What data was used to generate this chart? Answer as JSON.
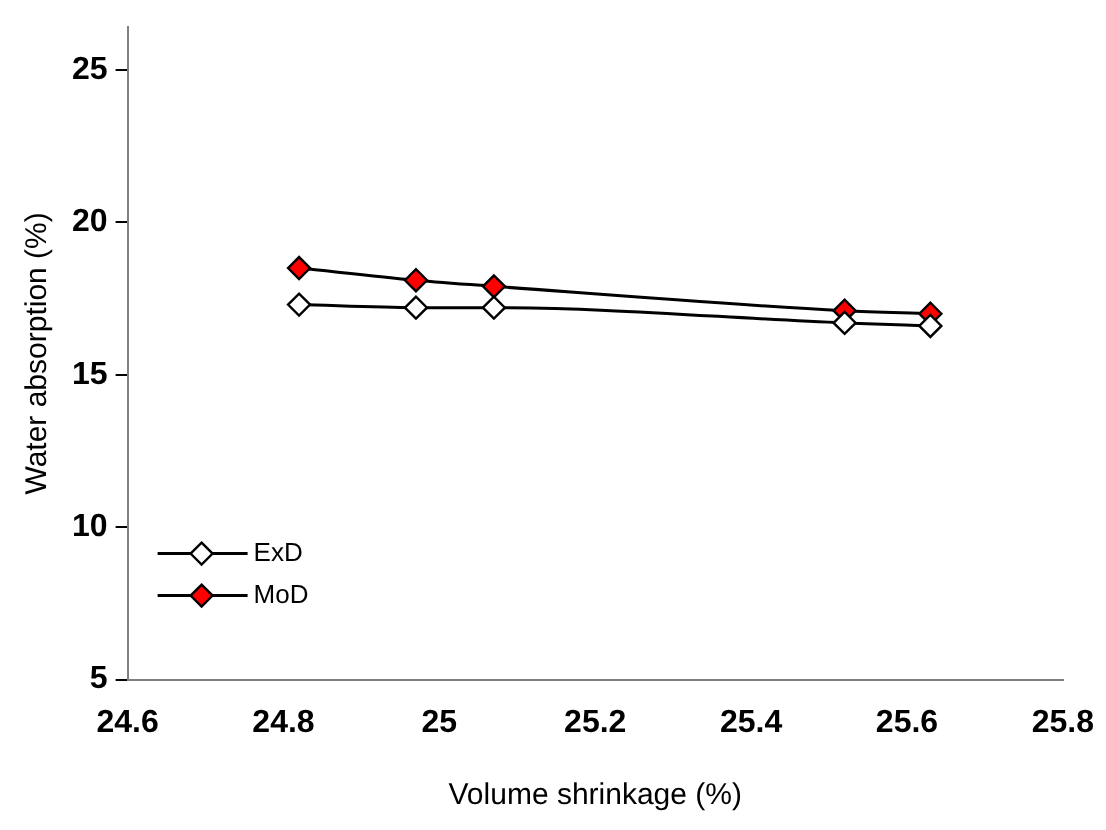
{
  "chart_data": {
    "type": "line",
    "xlabel": "Volume shrinkage (%)",
    "ylabel": "Water absorption (%)",
    "x": [
      24.82,
      24.97,
      25.07,
      25.52,
      25.63
    ],
    "series": [
      {
        "name": "ExD",
        "color": "#ffffff",
        "values": [
          17.3,
          17.2,
          17.2,
          16.7,
          16.6
        ]
      },
      {
        "name": "MoD",
        "color": "#ff0000",
        "values": [
          18.5,
          18.1,
          17.9,
          17.1,
          17.0
        ]
      }
    ],
    "xlim": [
      24.6,
      25.8
    ],
    "xticks": [
      24.6,
      24.8,
      25,
      25.2,
      25.4,
      25.6,
      25.8
    ],
    "ylim": [
      5,
      26.4
    ],
    "yticks": [
      5,
      10,
      15,
      20,
      25
    ],
    "grid": false,
    "legend": "bottom left",
    "marker": "diamond",
    "line_style": "solid"
  }
}
